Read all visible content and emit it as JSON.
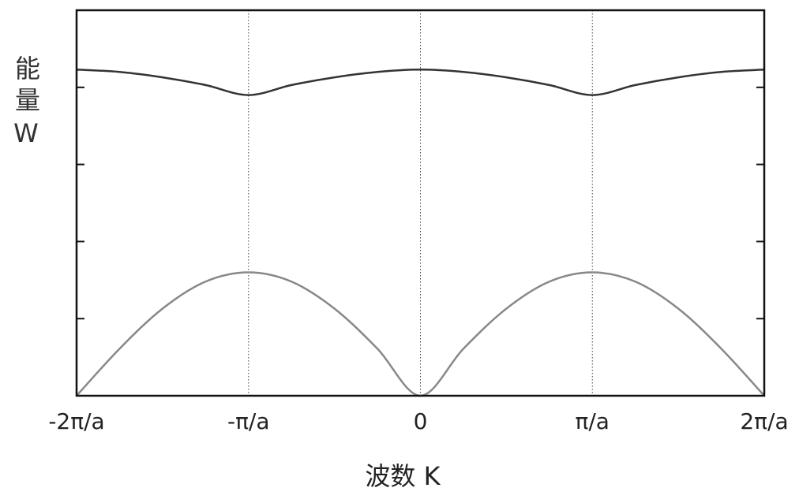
{
  "chart_data": {
    "type": "line",
    "xlabel": "波数 K",
    "ylabel": "能量W",
    "x": [
      -2,
      -1.75,
      -1.5,
      -1.25,
      -1,
      -0.75,
      -0.5,
      -0.25,
      0,
      0.25,
      0.5,
      0.75,
      1,
      1.25,
      1.5,
      1.75,
      2
    ],
    "series": [
      {
        "color": "#333333",
        "values": [
          4.23,
          4.2,
          4.13,
          4.03,
          3.9,
          4.03,
          4.13,
          4.2,
          4.23,
          4.2,
          4.13,
          4.03,
          3.9,
          4.03,
          4.13,
          4.2,
          4.23
        ]
      },
      {
        "color": "#888888",
        "values": [
          0,
          0.61,
          1.13,
          1.48,
          1.6,
          1.48,
          1.13,
          0.61,
          0,
          0.61,
          1.13,
          1.48,
          1.6,
          1.48,
          1.13,
          0.61,
          0
        ]
      }
    ],
    "xlim": [
      -2,
      2
    ],
    "xticks": [
      {
        "value": -2,
        "label": "-2π/a"
      },
      {
        "value": -1,
        "label": "-π/a"
      },
      0,
      {
        "value": 1,
        "label": "π/a"
      },
      {
        "value": 2,
        "label": "2π/a"
      }
    ],
    "ylim": [
      0,
      5
    ],
    "yticks": [
      1,
      2,
      3,
      4
    ],
    "xgrid": true
  }
}
